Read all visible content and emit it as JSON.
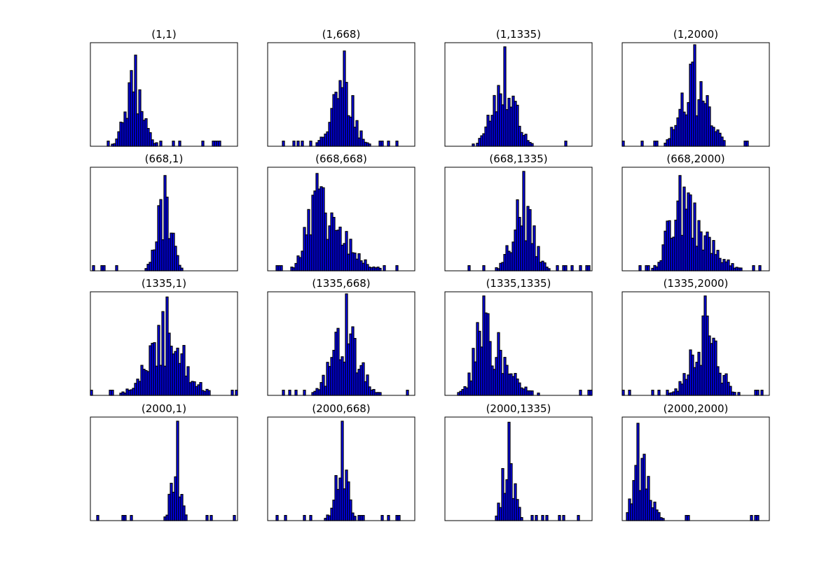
{
  "colors": {
    "fill": "#0000ff",
    "edge": "#000000",
    "axes": "#000000",
    "background": "#ffffff"
  },
  "chart_data": [
    {
      "type": "histogram",
      "title": "(1,1)",
      "center": 0.3,
      "spread": 0.06,
      "tail": "none",
      "peak": 0.88,
      "counts": []
    },
    {
      "type": "histogram",
      "title": "(1,668)",
      "center": 0.51,
      "spread": 0.07,
      "tail": "none",
      "peak": 0.92,
      "counts": []
    },
    {
      "type": "histogram",
      "title": "(1,1335)",
      "center": 0.4,
      "spread": 0.08,
      "tail": "none",
      "peak": 0.96,
      "counts": []
    },
    {
      "type": "histogram",
      "title": "(1,2000)",
      "center": 0.49,
      "spread": 0.09,
      "tail": "none",
      "peak": 0.98,
      "counts": []
    },
    {
      "type": "histogram",
      "title": "(668,1)",
      "center": 0.5,
      "spread": 0.05,
      "tail": "none",
      "peak": 0.92,
      "counts": []
    },
    {
      "type": "histogram",
      "title": "(668,668)",
      "center": 0.33,
      "spread": 0.07,
      "tail": "right",
      "peak": 0.94,
      "counts": []
    },
    {
      "type": "histogram",
      "title": "(668,1335)",
      "center": 0.53,
      "spread": 0.07,
      "tail": "none",
      "peak": 0.96,
      "counts": []
    },
    {
      "type": "histogram",
      "title": "(668,2000)",
      "center": 0.38,
      "spread": 0.07,
      "tail": "right",
      "peak": 0.92,
      "counts": []
    },
    {
      "type": "histogram",
      "title": "(1335,1)",
      "center": 0.52,
      "spread": 0.12,
      "tail": "none",
      "peak": 0.95,
      "counts": []
    },
    {
      "type": "histogram",
      "title": "(1335,668)",
      "center": 0.53,
      "spread": 0.09,
      "tail": "none",
      "peak": 0.98,
      "counts": []
    },
    {
      "type": "histogram",
      "title": "(1335,1335)",
      "center": 0.25,
      "spread": 0.06,
      "tail": "right",
      "peak": 0.96,
      "counts": []
    },
    {
      "type": "histogram",
      "title": "(1335,2000)",
      "center": 0.56,
      "spread": 0.09,
      "tail": "none",
      "peak": 0.96,
      "counts": []
    },
    {
      "type": "histogram",
      "title": "(2000,1)",
      "center": 0.58,
      "spread": 0.03,
      "tail": "none",
      "peak": 0.96,
      "counts": []
    },
    {
      "type": "histogram",
      "title": "(2000,668)",
      "center": 0.5,
      "spread": 0.04,
      "tail": "none",
      "peak": 0.96,
      "counts": []
    },
    {
      "type": "histogram",
      "title": "(2000,1335)",
      "center": 0.43,
      "spread": 0.04,
      "tail": "none",
      "peak": 0.95,
      "counts": []
    },
    {
      "type": "histogram",
      "title": "(2000,2000)",
      "center": 0.1,
      "spread": 0.03,
      "tail": "right",
      "peak": 0.94,
      "counts": []
    }
  ]
}
